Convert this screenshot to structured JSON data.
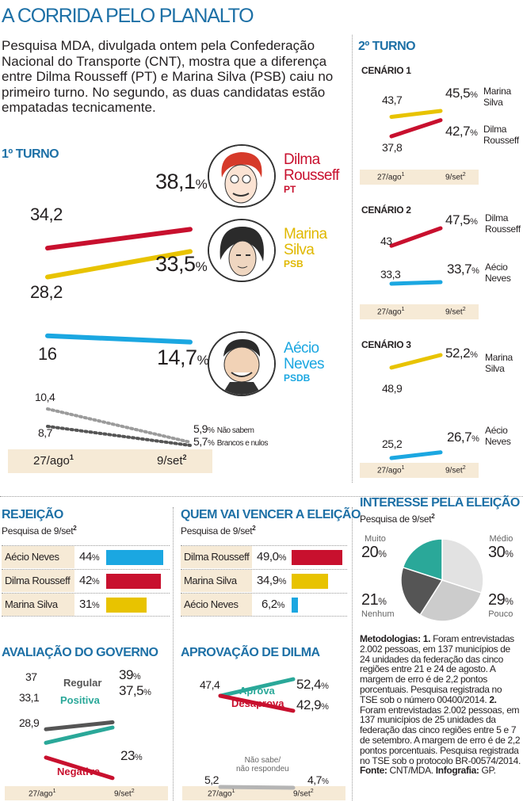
{
  "header": {
    "title": "A CORRIDA PELO PLANALTO",
    "lead": "Pesquisa MDA, divulgada ontem pela Confederação Nacional do Transporte (CNT), mostra que a diferença entre Dilma Rousseff (PT) e Marina Silva (PSB) caiu no primeiro turno. No segundo, as duas candidatas estão empatadas tecnicamente."
  },
  "colors": {
    "dilma": "#c8102e",
    "marina": "#e8c300",
    "aecio": "#1ba7e1",
    "gray": "#9b9b9b",
    "dark": "#555555",
    "teal": "#2aa899",
    "blue": "#1d70a6"
  },
  "axis": {
    "start": "27/ago",
    "start_note": "1",
    "end": "9/set",
    "end_note": "2"
  },
  "first_round": {
    "section_title": "1º TURNO",
    "candidates": [
      {
        "name": "Dilma",
        "name2": "Rousseff",
        "party": "PT",
        "start": "34,2",
        "end": "38,1",
        "pct": "%"
      },
      {
        "name": "Marina",
        "name2": "Silva",
        "party": "PSB",
        "start": "28,2",
        "end": "33,5",
        "pct": "%"
      },
      {
        "name": "Aécio",
        "name2": "Neves",
        "party": "PSDB",
        "start": "16",
        "end": "14,7",
        "pct": "%"
      }
    ],
    "others": [
      {
        "label": "Não sabem",
        "start": "10,4",
        "end": "5,9",
        "pct": "%"
      },
      {
        "label": "Brancos e nulos",
        "start": "8,7",
        "end": "5,7",
        "pct": "%"
      }
    ]
  },
  "second_round": {
    "section_title": "2º TURNO",
    "scenarios": [
      {
        "title": "CENÁRIO 1",
        "lines": [
          {
            "name": "Marina",
            "name2": "Silva",
            "start": "43,7",
            "end": "45,5",
            "pct": "%"
          },
          {
            "name": "Dilma",
            "name2": "Rousseff",
            "start": "37,8",
            "end": "42,7",
            "pct": "%"
          }
        ]
      },
      {
        "title": "CENÁRIO 2",
        "lines": [
          {
            "name": "Dilma",
            "name2": "Rousseff",
            "start": "43",
            "end": "47,5",
            "pct": "%"
          },
          {
            "name": "Aécio",
            "name2": "Neves",
            "start": "33,3",
            "end": "33,7",
            "pct": "%"
          }
        ]
      },
      {
        "title": "CENÁRIO 3",
        "lines": [
          {
            "name": "Marina",
            "name2": "Silva",
            "start": "48,9",
            "end": "52,2",
            "pct": "%"
          },
          {
            "name": "Aécio",
            "name2": "Neves",
            "start": "25,2",
            "end": "26,7",
            "pct": "%"
          }
        ]
      }
    ]
  },
  "rejection": {
    "title": "REJEIÇÃO",
    "subtitle": "Pesquisa de 9/set",
    "note": "2",
    "rows": [
      {
        "name": "Aécio Neves",
        "value": "44",
        "pct": "%"
      },
      {
        "name": "Dilma Rousseff",
        "value": "42",
        "pct": "%"
      },
      {
        "name": "Marina Silva",
        "value": "31",
        "pct": "%"
      }
    ]
  },
  "who_wins": {
    "title": "QUEM VAI VENCER A ELEIÇÃO",
    "subtitle": "Pesquisa de 9/set",
    "note": "2",
    "rows": [
      {
        "name": "Dilma Rousseff",
        "value": "49,0",
        "pct": "%"
      },
      {
        "name": "Marina Silva",
        "value": "34,9",
        "pct": "%"
      },
      {
        "name": "Aécio Neves",
        "value": "6,2",
        "pct": "%"
      }
    ]
  },
  "interest": {
    "title": "INTERESSE PELA ELEIÇÃO",
    "subtitle": "Pesquisa de 9/set",
    "note": "2",
    "slices": [
      {
        "label": "Muito",
        "value": "20",
        "pct": "%"
      },
      {
        "label": "Médio",
        "value": "30",
        "pct": "%"
      },
      {
        "label": "Pouco",
        "value": "29",
        "pct": "%"
      },
      {
        "label": "Nenhum",
        "value": "21",
        "pct": "%"
      }
    ]
  },
  "government": {
    "title": "AVALIAÇÃO DO GOVERNO",
    "lines": [
      {
        "label": "Regular",
        "start": "37",
        "end": "39",
        "pct": "%"
      },
      {
        "label": "Positiva",
        "start": "33,1",
        "end": "37,5",
        "pct": "%"
      },
      {
        "label": "Negativa",
        "start": "28,9",
        "end": "23",
        "pct": "%"
      }
    ]
  },
  "approval": {
    "title": "APROVAÇÃO DE DILMA",
    "lines": [
      {
        "label": "Aprova",
        "start": "47,4",
        "end": "52,4",
        "pct": "%"
      },
      {
        "label": "Desaprova",
        "start": "47,4",
        "end": "42,9",
        "pct": "%"
      },
      {
        "label": "Não sabe/",
        "label2": "não respondeu",
        "start": "5,2",
        "end": "4,7",
        "pct": "%"
      }
    ]
  },
  "methodology": {
    "head": "Metodologias:",
    "n1": "1.",
    "text1": "Foram entrevistadas 2.002 pessoas, em 137 municípios de 24 unidades da federação das cinco regiões entre 21 e 24 de agosto. A margem de erro é de 2,2 pontos porcentuais. Pesquisa registrada no TSE sob o número 00400/2014.",
    "n2": "2.",
    "text2": "Foram entrevistadas 2.002 pessoas, em 137 municípios de 25 unidades da federação das cinco regiões entre 5 e 7 de setembro. A margem de erro é de 2,2 pontos porcentuais. Pesquisa registrada no TSE sob o protocolo BR-00574/2014.",
    "source_label": "Fonte:",
    "source": "CNT/MDA.",
    "credit_label": "Infografia:",
    "credit": "GP."
  },
  "chart_data": [
    {
      "type": "line",
      "title": "1º TURNO",
      "categories": [
        "27/ago",
        "9/set"
      ],
      "series": [
        {
          "name": "Dilma Rousseff",
          "values": [
            34.2,
            38.1
          ]
        },
        {
          "name": "Marina Silva",
          "values": [
            28.2,
            33.5
          ]
        },
        {
          "name": "Aécio Neves",
          "values": [
            16,
            14.7
          ]
        },
        {
          "name": "Não sabem",
          "values": [
            10.4,
            5.9
          ]
        },
        {
          "name": "Brancos e nulos",
          "values": [
            8.7,
            5.7
          ]
        }
      ]
    },
    {
      "type": "line",
      "title": "2º TURNO CENÁRIO 1",
      "categories": [
        "27/ago",
        "9/set"
      ],
      "series": [
        {
          "name": "Marina Silva",
          "values": [
            43.7,
            45.5
          ]
        },
        {
          "name": "Dilma Rousseff",
          "values": [
            37.8,
            42.7
          ]
        }
      ]
    },
    {
      "type": "line",
      "title": "2º TURNO CENÁRIO 2",
      "categories": [
        "27/ago",
        "9/set"
      ],
      "series": [
        {
          "name": "Dilma Rousseff",
          "values": [
            43,
            47.5
          ]
        },
        {
          "name": "Aécio Neves",
          "values": [
            33.3,
            33.7
          ]
        }
      ]
    },
    {
      "type": "line",
      "title": "2º TURNO CENÁRIO 3",
      "categories": [
        "27/ago",
        "9/set"
      ],
      "series": [
        {
          "name": "Marina Silva",
          "values": [
            48.9,
            52.2
          ]
        },
        {
          "name": "Aécio Neves",
          "values": [
            25.2,
            26.7
          ]
        }
      ]
    },
    {
      "type": "bar",
      "title": "REJEIÇÃO",
      "categories": [
        "Aécio Neves",
        "Dilma Rousseff",
        "Marina Silva"
      ],
      "values": [
        44,
        42,
        31
      ]
    },
    {
      "type": "bar",
      "title": "QUEM VAI VENCER A ELEIÇÃO",
      "categories": [
        "Dilma Rousseff",
        "Marina Silva",
        "Aécio Neves"
      ],
      "values": [
        49.0,
        34.9,
        6.2
      ]
    },
    {
      "type": "pie",
      "title": "INTERESSE PELA ELEIÇÃO",
      "categories": [
        "Médio",
        "Pouco",
        "Nenhum",
        "Muito"
      ],
      "values": [
        30,
        29,
        21,
        20
      ]
    },
    {
      "type": "line",
      "title": "AVALIAÇÃO DO GOVERNO",
      "categories": [
        "27/ago",
        "9/set"
      ],
      "series": [
        {
          "name": "Regular",
          "values": [
            37,
            39
          ]
        },
        {
          "name": "Positiva",
          "values": [
            33.1,
            37.5
          ]
        },
        {
          "name": "Negativa",
          "values": [
            28.9,
            23
          ]
        }
      ]
    },
    {
      "type": "line",
      "title": "APROVAÇÃO DE DILMA",
      "categories": [
        "27/ago",
        "9/set"
      ],
      "series": [
        {
          "name": "Aprova",
          "values": [
            47.4,
            52.4
          ]
        },
        {
          "name": "Desaprova",
          "values": [
            47.4,
            42.9
          ]
        },
        {
          "name": "Não sabe/não respondeu",
          "values": [
            5.2,
            4.7
          ]
        }
      ]
    }
  ]
}
